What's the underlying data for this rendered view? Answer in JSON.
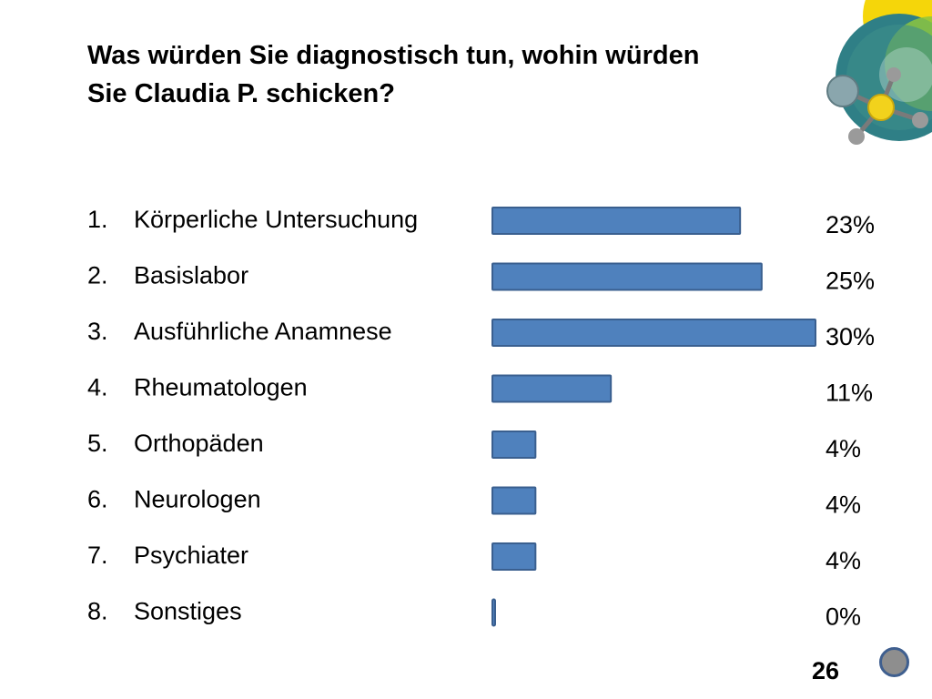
{
  "slide": {
    "title_line1": "Was würden Sie diagnostisch tun, wohin würden",
    "title_line2": "Sie Claudia P. schicken?",
    "page_number": "26"
  },
  "colors": {
    "bar_fill": "#4f81bd",
    "bar_stroke": "#3a5f8f",
    "accent_yellow": "#f5d60a",
    "accent_teal": "#2f7f86",
    "accent_green": "#8cc63f"
  },
  "icons": {
    "logo": "molecule-logo-icon",
    "nav": "nav-circle-button"
  },
  "chart_data": {
    "type": "bar",
    "orientation": "horizontal",
    "title": "",
    "xlabel": "",
    "ylabel": "",
    "categories": [
      "Körperliche Untersuchung",
      "Basislabor",
      "Ausführliche Anamnese",
      "Rheumatologen",
      "Orthopäden",
      "Neurologen",
      "Psychiater",
      "Sonstiges"
    ],
    "numbers": [
      "1.",
      "2.",
      "3.",
      "4.",
      "5.",
      "6.",
      "7.",
      "8."
    ],
    "values": [
      23,
      25,
      30,
      11,
      4,
      4,
      4,
      0
    ],
    "value_labels": [
      "23%",
      "25%",
      "30%",
      "11%",
      "4%",
      "4%",
      "4%",
      "0%"
    ],
    "unit": "%",
    "xlim": [
      0,
      30
    ],
    "grid": false,
    "legend": "none"
  }
}
